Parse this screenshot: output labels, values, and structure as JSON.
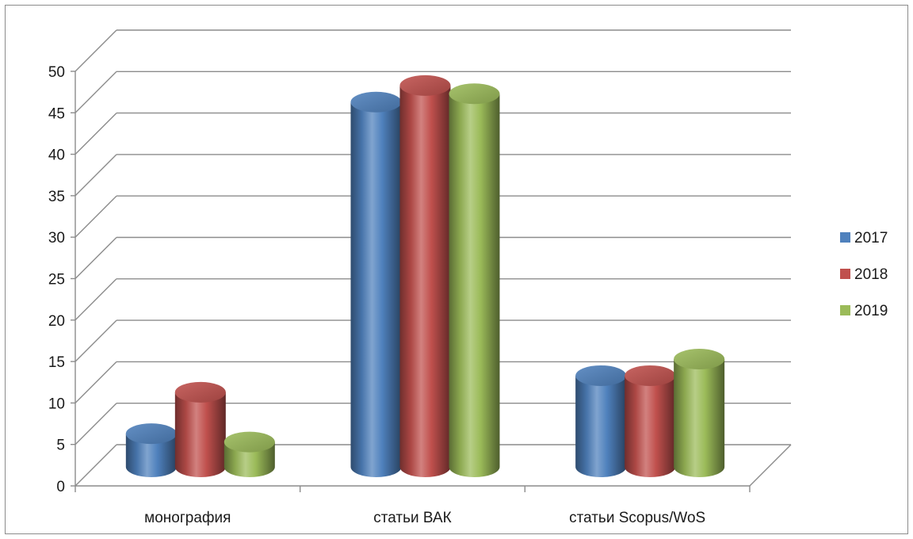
{
  "chart_data": {
    "type": "bar",
    "categories": [
      "монография",
      "статьи ВАК",
      "статьи Scopus/WoS"
    ],
    "series": [
      {
        "name": "2017",
        "color": "#4f81bd",
        "values": [
          4,
          44,
          11
        ]
      },
      {
        "name": "2018",
        "color": "#c0504d",
        "values": [
          9,
          46,
          11
        ]
      },
      {
        "name": "2019",
        "color": "#9bbb59",
        "values": [
          3,
          45,
          13
        ]
      }
    ],
    "y_ticks": [
      "0",
      "5",
      "10",
      "15",
      "20",
      "25",
      "30",
      "35",
      "40",
      "45",
      "50"
    ],
    "ylim": [
      0,
      50
    ],
    "grid": true,
    "legend_position": "right",
    "bar_shape": "3d-cylinder"
  }
}
